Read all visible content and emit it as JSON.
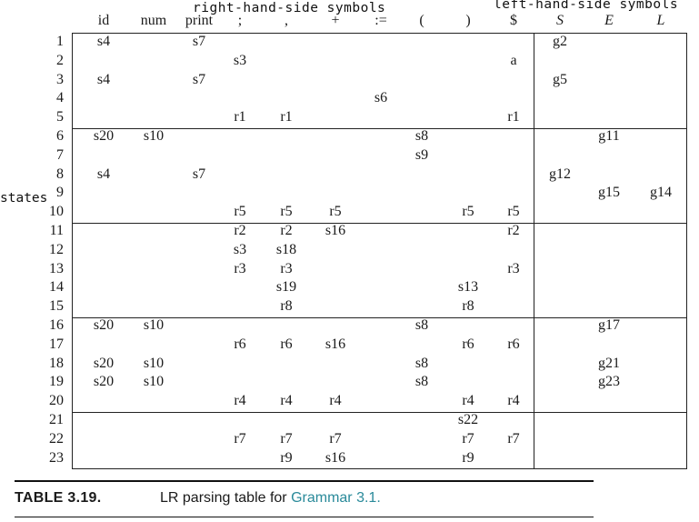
{
  "headers": {
    "rhs": "right-hand-side symbols",
    "lhs": "left-hand-side symbols",
    "states": "states"
  },
  "columns": [
    "id",
    "num",
    "print",
    ";",
    ",",
    "+",
    ":=",
    "(",
    ")",
    "$",
    "S",
    "E",
    "L"
  ],
  "italic_columns": [
    "S",
    "E",
    "L"
  ],
  "rows": [
    {
      "n": "1",
      "c": [
        "s4",
        "",
        "s7",
        "",
        "",
        "",
        "",
        "",
        "",
        "",
        "g2",
        "",
        ""
      ]
    },
    {
      "n": "2",
      "c": [
        "",
        "",
        "",
        "s3",
        "",
        "",
        "",
        "",
        "",
        "a",
        "",
        "",
        ""
      ]
    },
    {
      "n": "3",
      "c": [
        "s4",
        "",
        "s7",
        "",
        "",
        "",
        "",
        "",
        "",
        "",
        "g5",
        "",
        ""
      ]
    },
    {
      "n": "4",
      "c": [
        "",
        "",
        "",
        "",
        "",
        "",
        "s6",
        "",
        "",
        "",
        "",
        "",
        ""
      ]
    },
    {
      "n": "5",
      "c": [
        "",
        "",
        "",
        "r1",
        "r1",
        "",
        "",
        "",
        "",
        "r1",
        "",
        "",
        ""
      ]
    },
    {
      "n": "6",
      "c": [
        "s20",
        "s10",
        "",
        "",
        "",
        "",
        "",
        "s8",
        "",
        "",
        "",
        "g11",
        ""
      ]
    },
    {
      "n": "7",
      "c": [
        "",
        "",
        "",
        "",
        "",
        "",
        "",
        "s9",
        "",
        "",
        "",
        "",
        ""
      ]
    },
    {
      "n": "8",
      "c": [
        "s4",
        "",
        "s7",
        "",
        "",
        "",
        "",
        "",
        "",
        "",
        "g12",
        "",
        ""
      ]
    },
    {
      "n": "9",
      "c": [
        "",
        "",
        "",
        "",
        "",
        "",
        "",
        "",
        "",
        "",
        "",
        "g15",
        "g14"
      ]
    },
    {
      "n": "10",
      "c": [
        "",
        "",
        "",
        "r5",
        "r5",
        "r5",
        "",
        "",
        "r5",
        "r5",
        "",
        "",
        ""
      ]
    },
    {
      "n": "11",
      "c": [
        "",
        "",
        "",
        "r2",
        "r2",
        "s16",
        "",
        "",
        "",
        "r2",
        "",
        "",
        ""
      ]
    },
    {
      "n": "12",
      "c": [
        "",
        "",
        "",
        "s3",
        "s18",
        "",
        "",
        "",
        "",
        "",
        "",
        "",
        ""
      ]
    },
    {
      "n": "13",
      "c": [
        "",
        "",
        "",
        "r3",
        "r3",
        "",
        "",
        "",
        "",
        "r3",
        "",
        "",
        ""
      ]
    },
    {
      "n": "14",
      "c": [
        "",
        "",
        "",
        "",
        "s19",
        "",
        "",
        "",
        "s13",
        "",
        "",
        "",
        ""
      ]
    },
    {
      "n": "15",
      "c": [
        "",
        "",
        "",
        "",
        "r8",
        "",
        "",
        "",
        "r8",
        "",
        "",
        "",
        ""
      ]
    },
    {
      "n": "16",
      "c": [
        "s20",
        "s10",
        "",
        "",
        "",
        "",
        "",
        "s8",
        "",
        "",
        "",
        "g17",
        ""
      ]
    },
    {
      "n": "17",
      "c": [
        "",
        "",
        "",
        "r6",
        "r6",
        "s16",
        "",
        "",
        "r6",
        "r6",
        "",
        "",
        ""
      ]
    },
    {
      "n": "18",
      "c": [
        "s20",
        "s10",
        "",
        "",
        "",
        "",
        "",
        "s8",
        "",
        "",
        "",
        "g21",
        ""
      ]
    },
    {
      "n": "19",
      "c": [
        "s20",
        "s10",
        "",
        "",
        "",
        "",
        "",
        "s8",
        "",
        "",
        "",
        "g23",
        ""
      ]
    },
    {
      "n": "20",
      "c": [
        "",
        "",
        "",
        "r4",
        "r4",
        "r4",
        "",
        "",
        "r4",
        "r4",
        "",
        "",
        ""
      ]
    },
    {
      "n": "21",
      "c": [
        "",
        "",
        "",
        "",
        "",
        "",
        "",
        "",
        "s22",
        "",
        "",
        "",
        ""
      ]
    },
    {
      "n": "22",
      "c": [
        "",
        "",
        "",
        "r7",
        "r7",
        "r7",
        "",
        "",
        "r7",
        "r7",
        "",
        "",
        ""
      ]
    },
    {
      "n": "23",
      "c": [
        "",
        "",
        "",
        "",
        "r9",
        "s16",
        "",
        "",
        "r9",
        "",
        "",
        "",
        ""
      ]
    }
  ],
  "caption": {
    "label": "TABLE 3.19.",
    "text": "LR parsing table for ",
    "link": "Grammar 3.1."
  }
}
